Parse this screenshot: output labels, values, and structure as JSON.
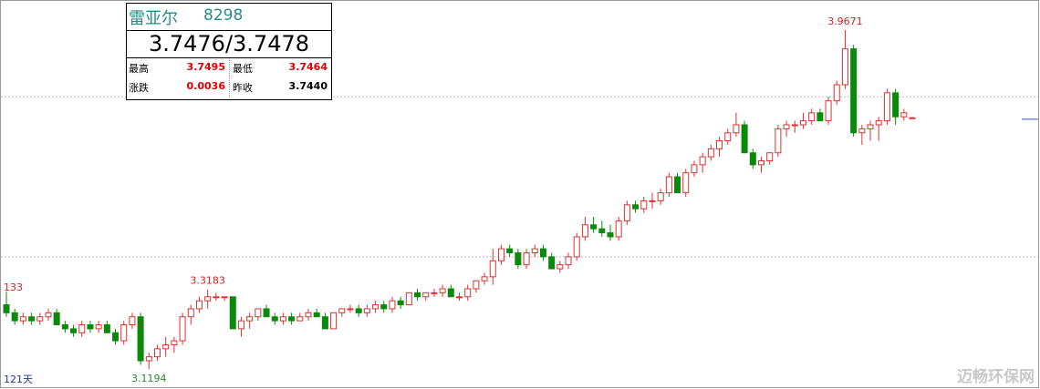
{
  "header": {
    "name": "雷亚尔",
    "code": "8298",
    "price": "3.7476/3.7478",
    "stats": [
      {
        "label": "最高",
        "value": "3.7495"
      },
      {
        "label": "最低",
        "value": "3.7464"
      },
      {
        "label": "涨跌",
        "value": "0.0036"
      },
      {
        "label": "昨收",
        "value": "3.7440"
      }
    ]
  },
  "chart_data": {
    "type": "candlestick",
    "ylim": [
      3.074,
      4.042
    ],
    "grid_lines": [
      3.4,
      3.8
    ],
    "prev_close": 3.744,
    "up_color": "#e0302f",
    "down_color": "#0a8a0a",
    "line_color": "#3355cc",
    "annotations": [
      "3.9671",
      "3.3183",
      "3.1194"
    ],
    "left_label": "133",
    "period": "121天",
    "candles": [
      [
        3.28,
        3.313,
        3.25,
        3.26
      ],
      [
        3.26,
        3.27,
        3.23,
        3.24
      ],
      [
        3.24,
        3.26,
        3.23,
        3.25
      ],
      [
        3.25,
        3.26,
        3.23,
        3.24
      ],
      [
        3.24,
        3.26,
        3.23,
        3.25
      ],
      [
        3.25,
        3.27,
        3.24,
        3.26
      ],
      [
        3.26,
        3.27,
        3.23,
        3.23
      ],
      [
        3.23,
        3.24,
        3.21,
        3.22
      ],
      [
        3.22,
        3.23,
        3.2,
        3.21
      ],
      [
        3.21,
        3.24,
        3.2,
        3.23
      ],
      [
        3.23,
        3.24,
        3.21,
        3.22
      ],
      [
        3.22,
        3.24,
        3.21,
        3.23
      ],
      [
        3.23,
        3.24,
        3.21,
        3.21
      ],
      [
        3.21,
        3.22,
        3.18,
        3.19
      ],
      [
        3.19,
        3.24,
        3.18,
        3.23
      ],
      [
        3.23,
        3.26,
        3.22,
        3.25
      ],
      [
        3.25,
        3.26,
        3.13,
        3.14
      ],
      [
        3.14,
        3.16,
        3.1194,
        3.15
      ],
      [
        3.15,
        3.18,
        3.14,
        3.17
      ],
      [
        3.17,
        3.2,
        3.15,
        3.18
      ],
      [
        3.18,
        3.2,
        3.16,
        3.19
      ],
      [
        3.19,
        3.26,
        3.18,
        3.25
      ],
      [
        3.25,
        3.28,
        3.23,
        3.27
      ],
      [
        3.27,
        3.3,
        3.26,
        3.29
      ],
      [
        3.29,
        3.3183,
        3.27,
        3.3
      ],
      [
        3.3,
        3.31,
        3.29,
        3.3
      ],
      [
        3.3,
        3.3,
        3.29,
        3.3
      ],
      [
        3.3,
        3.3,
        3.22,
        3.22
      ],
      [
        3.22,
        3.25,
        3.2,
        3.24
      ],
      [
        3.24,
        3.26,
        3.22,
        3.25
      ],
      [
        3.25,
        3.27,
        3.24,
        3.27
      ],
      [
        3.27,
        3.28,
        3.25,
        3.25
      ],
      [
        3.25,
        3.26,
        3.23,
        3.24
      ],
      [
        3.24,
        3.26,
        3.23,
        3.25
      ],
      [
        3.25,
        3.26,
        3.23,
        3.24
      ],
      [
        3.24,
        3.26,
        3.24,
        3.25
      ],
      [
        3.25,
        3.27,
        3.24,
        3.26
      ],
      [
        3.26,
        3.27,
        3.25,
        3.25
      ],
      [
        3.25,
        3.26,
        3.22,
        3.22
      ],
      [
        3.22,
        3.26,
        3.22,
        3.26
      ],
      [
        3.26,
        3.27,
        3.25,
        3.27
      ],
      [
        3.27,
        3.28,
        3.26,
        3.27
      ],
      [
        3.27,
        3.28,
        3.25,
        3.26
      ],
      [
        3.26,
        3.28,
        3.25,
        3.27
      ],
      [
        3.27,
        3.29,
        3.26,
        3.28
      ],
      [
        3.28,
        3.29,
        3.26,
        3.27
      ],
      [
        3.27,
        3.3,
        3.26,
        3.29
      ],
      [
        3.29,
        3.3,
        3.27,
        3.28
      ],
      [
        3.28,
        3.31,
        3.28,
        3.31
      ],
      [
        3.31,
        3.32,
        3.29,
        3.3
      ],
      [
        3.3,
        3.31,
        3.29,
        3.31
      ],
      [
        3.31,
        3.32,
        3.3,
        3.31
      ],
      [
        3.31,
        3.33,
        3.3,
        3.32
      ],
      [
        3.32,
        3.33,
        3.3,
        3.3
      ],
      [
        3.3,
        3.31,
        3.29,
        3.3
      ],
      [
        3.3,
        3.33,
        3.29,
        3.32
      ],
      [
        3.32,
        3.34,
        3.31,
        3.34
      ],
      [
        3.34,
        3.36,
        3.33,
        3.35
      ],
      [
        3.35,
        3.42,
        3.33,
        3.39
      ],
      [
        3.39,
        3.43,
        3.38,
        3.42
      ],
      [
        3.42,
        3.43,
        3.4,
        3.41
      ],
      [
        3.41,
        3.42,
        3.37,
        3.38
      ],
      [
        3.38,
        3.42,
        3.37,
        3.41
      ],
      [
        3.41,
        3.43,
        3.4,
        3.42
      ],
      [
        3.42,
        3.43,
        3.39,
        3.4
      ],
      [
        3.4,
        3.41,
        3.37,
        3.37
      ],
      [
        3.37,
        3.39,
        3.36,
        3.38
      ],
      [
        3.38,
        3.41,
        3.37,
        3.4
      ],
      [
        3.4,
        3.46,
        3.39,
        3.45
      ],
      [
        3.45,
        3.5,
        3.44,
        3.48
      ],
      [
        3.48,
        3.5,
        3.46,
        3.47
      ],
      [
        3.47,
        3.49,
        3.45,
        3.46
      ],
      [
        3.46,
        3.48,
        3.44,
        3.45
      ],
      [
        3.45,
        3.5,
        3.44,
        3.49
      ],
      [
        3.49,
        3.54,
        3.48,
        3.53
      ],
      [
        3.53,
        3.54,
        3.51,
        3.52
      ],
      [
        3.52,
        3.55,
        3.51,
        3.54
      ],
      [
        3.54,
        3.56,
        3.52,
        3.54
      ],
      [
        3.54,
        3.57,
        3.53,
        3.56
      ],
      [
        3.56,
        3.61,
        3.55,
        3.6
      ],
      [
        3.6,
        3.61,
        3.56,
        3.56
      ],
      [
        3.56,
        3.62,
        3.55,
        3.61
      ],
      [
        3.61,
        3.64,
        3.6,
        3.63
      ],
      [
        3.63,
        3.66,
        3.61,
        3.65
      ],
      [
        3.65,
        3.68,
        3.64,
        3.67
      ],
      [
        3.67,
        3.7,
        3.65,
        3.69
      ],
      [
        3.69,
        3.72,
        3.68,
        3.71
      ],
      [
        3.71,
        3.76,
        3.7,
        3.73
      ],
      [
        3.73,
        3.74,
        3.66,
        3.66
      ],
      [
        3.66,
        3.67,
        3.62,
        3.63
      ],
      [
        3.63,
        3.65,
        3.61,
        3.64
      ],
      [
        3.64,
        3.66,
        3.63,
        3.66
      ],
      [
        3.66,
        3.73,
        3.65,
        3.72
      ],
      [
        3.72,
        3.74,
        3.7,
        3.73
      ],
      [
        3.73,
        3.74,
        3.71,
        3.73
      ],
      [
        3.73,
        3.76,
        3.72,
        3.74
      ],
      [
        3.74,
        3.77,
        3.73,
        3.76
      ],
      [
        3.76,
        3.77,
        3.74,
        3.74
      ],
      [
        3.74,
        3.8,
        3.73,
        3.79
      ],
      [
        3.79,
        3.84,
        3.78,
        3.83
      ],
      [
        3.83,
        3.9671,
        3.82,
        3.92
      ],
      [
        3.92,
        3.93,
        3.7,
        3.71
      ],
      [
        3.71,
        3.73,
        3.68,
        3.72
      ],
      [
        3.72,
        3.74,
        3.69,
        3.73
      ],
      [
        3.73,
        3.75,
        3.69,
        3.74
      ],
      [
        3.74,
        3.82,
        3.73,
        3.81
      ],
      [
        3.81,
        3.82,
        3.73,
        3.75
      ],
      [
        3.75,
        3.77,
        3.74,
        3.76
      ],
      [
        3.7476,
        3.7495,
        3.7464,
        3.7476
      ]
    ]
  },
  "watermark": "迈畅环保网"
}
